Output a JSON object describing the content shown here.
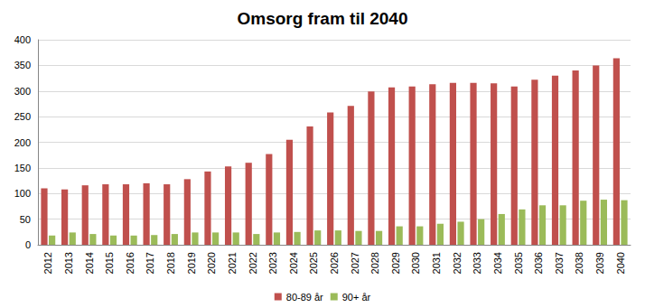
{
  "chart_data": {
    "type": "bar",
    "title": "Omsorg fram til 2040",
    "categories": [
      "2012",
      "2013",
      "2014",
      "2015",
      "2016",
      "2017",
      "2018",
      "2019",
      "2020",
      "2021",
      "2022",
      "2023",
      "2024",
      "2025",
      "2026",
      "2027",
      "2028",
      "2029",
      "2030",
      "2031",
      "2032",
      "2033",
      "2034",
      "2035",
      "2036",
      "2037",
      "2038",
      "2039",
      "2040"
    ],
    "series": [
      {
        "name": "80-89 år",
        "color": "#c0504d",
        "values": [
          110,
          108,
          116,
          118,
          118,
          120,
          118,
          128,
          143,
          153,
          160,
          177,
          205,
          231,
          258,
          271,
          299,
          307,
          309,
          313,
          316,
          316,
          315,
          309,
          322,
          330,
          340,
          350,
          364
        ]
      },
      {
        "name": "90+ år",
        "color": "#9bbb59",
        "values": [
          18,
          24,
          21,
          18,
          18,
          19,
          21,
          24,
          24,
          24,
          21,
          24,
          25,
          28,
          28,
          27,
          27,
          36,
          36,
          41,
          45,
          50,
          60,
          69,
          77,
          77,
          86,
          88,
          87
        ]
      }
    ],
    "ylim": [
      0,
      400
    ],
    "yticks": [
      0,
      50,
      100,
      150,
      200,
      250,
      300,
      350,
      400
    ],
    "grid": true,
    "legend": "bottom"
  }
}
